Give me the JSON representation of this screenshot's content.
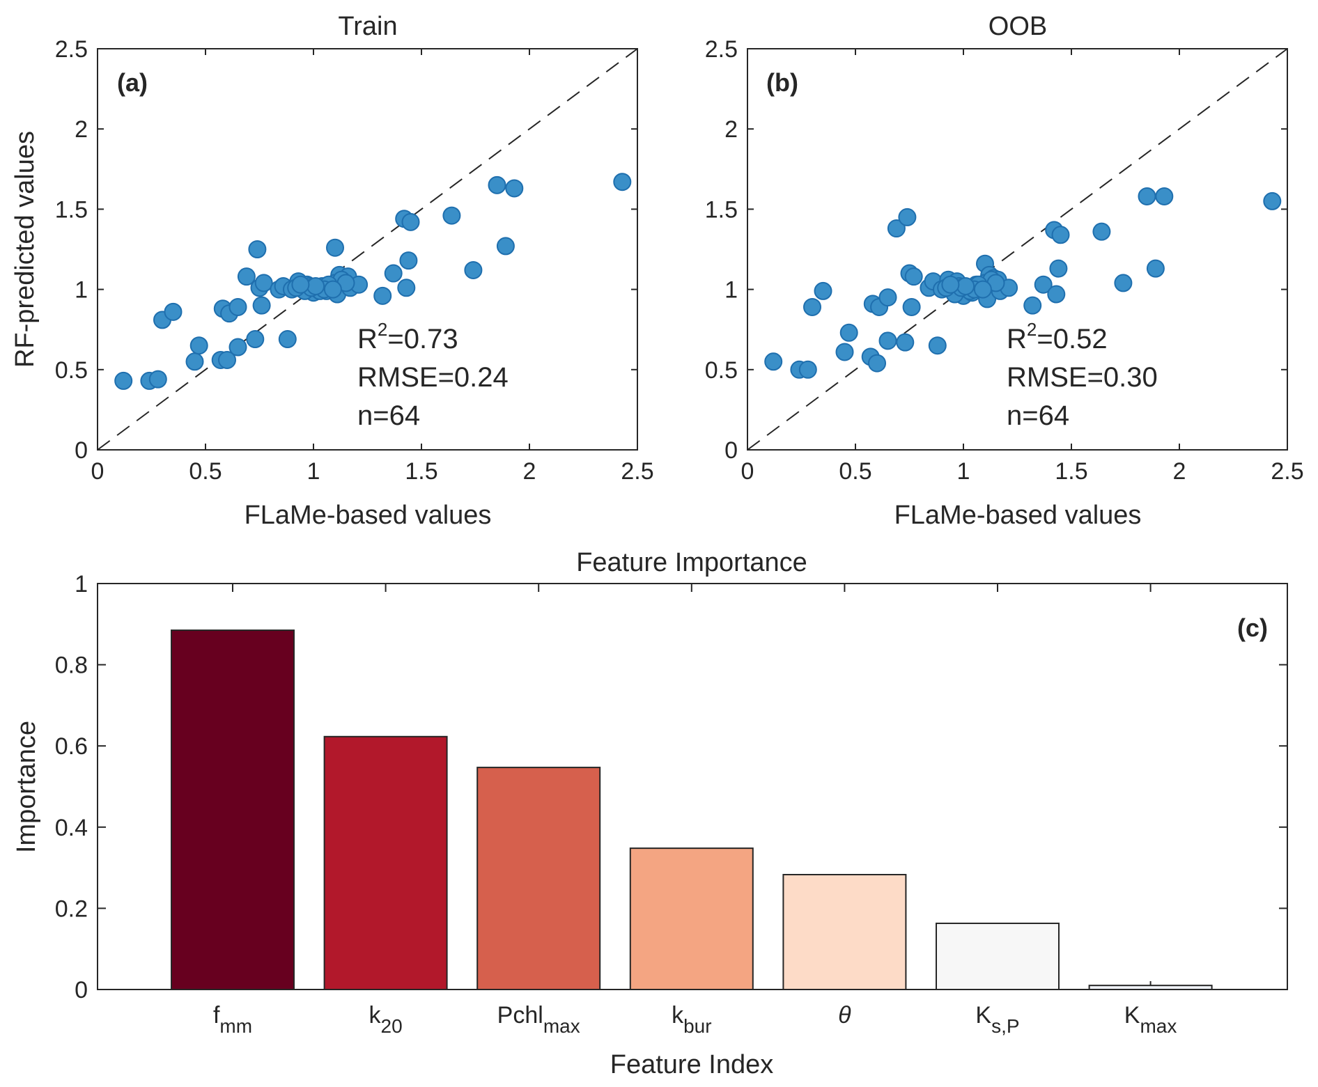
{
  "chart_data": [
    {
      "type": "scatter",
      "title": "Train",
      "panel_label": "(a)",
      "xlabel": "FLaMe-based values",
      "ylabel": "RF-predicted values",
      "xlim": [
        0,
        2.5
      ],
      "ylim": [
        0,
        2.5
      ],
      "xticks": [
        "0",
        "0.5",
        "1",
        "1.5",
        "2",
        "2.5"
      ],
      "yticks": [
        "0",
        "0.5",
        "1",
        "1.5",
        "2",
        "2.5"
      ],
      "reference_line": "y = x (dashed)",
      "marker_color": "#3a8fc8",
      "marker_edge": "#1f6fae",
      "stats": {
        "r2_prefix": "R",
        "r2_sup": "2",
        "r2_value": "=0.73",
        "rmse": "RMSE=0.24",
        "n": "n=64"
      },
      "points": [
        [
          0.12,
          0.43
        ],
        [
          0.24,
          0.43
        ],
        [
          0.28,
          0.44
        ],
        [
          0.3,
          0.81
        ],
        [
          0.35,
          0.86
        ],
        [
          0.45,
          0.55
        ],
        [
          0.47,
          0.65
        ],
        [
          0.57,
          0.56
        ],
        [
          0.58,
          0.88
        ],
        [
          0.6,
          0.56
        ],
        [
          0.61,
          0.85
        ],
        [
          0.65,
          0.89
        ],
        [
          0.65,
          0.64
        ],
        [
          0.69,
          1.08
        ],
        [
          0.73,
          0.69
        ],
        [
          0.74,
          1.25
        ],
        [
          0.75,
          1.01
        ],
        [
          0.76,
          0.9
        ],
        [
          0.77,
          1.04
        ],
        [
          0.84,
          1.0
        ],
        [
          0.86,
          1.02
        ],
        [
          0.88,
          0.69
        ],
        [
          0.9,
          1.0
        ],
        [
          0.93,
          1.05
        ],
        [
          0.95,
          1.0
        ],
        [
          0.97,
          1.03
        ],
        [
          0.99,
          1.0
        ],
        [
          1.0,
          0.98
        ],
        [
          1.02,
          1.0
        ],
        [
          1.04,
          1.02
        ],
        [
          1.06,
          0.99
        ],
        [
          1.08,
          1.01
        ],
        [
          1.1,
          1.26
        ],
        [
          1.11,
          0.97
        ],
        [
          1.12,
          1.09
        ],
        [
          1.14,
          1.05
        ],
        [
          1.16,
          1.08
        ],
        [
          1.17,
          1.01
        ],
        [
          1.21,
          1.03
        ],
        [
          1.32,
          0.96
        ],
        [
          1.37,
          1.1
        ],
        [
          1.42,
          1.44
        ],
        [
          1.43,
          1.01
        ],
        [
          1.44,
          1.18
        ],
        [
          1.45,
          1.42
        ],
        [
          1.64,
          1.46
        ],
        [
          1.74,
          1.12
        ],
        [
          1.85,
          1.65
        ],
        [
          1.89,
          1.27
        ],
        [
          1.93,
          1.63
        ],
        [
          2.43,
          1.67
        ],
        [
          0.98,
          1.02
        ],
        [
          1.03,
          0.99
        ],
        [
          1.1,
          1.04
        ],
        [
          1.13,
          1.06
        ],
        [
          0.96,
          0.99
        ],
        [
          1.07,
          1.03
        ],
        [
          0.92,
          1.01
        ],
        [
          1.15,
          1.04
        ],
        [
          0.99,
          1.01
        ],
        [
          1.05,
          1.0
        ],
        [
          1.01,
          1.02
        ],
        [
          1.09,
          1.0
        ],
        [
          0.94,
          1.03
        ]
      ]
    },
    {
      "type": "scatter",
      "title": "OOB",
      "panel_label": "(b)",
      "xlabel": "FLaMe-based values",
      "ylabel": "",
      "xlim": [
        0,
        2.5
      ],
      "ylim": [
        0,
        2.5
      ],
      "xticks": [
        "0",
        "0.5",
        "1",
        "1.5",
        "2",
        "2.5"
      ],
      "yticks": [
        "0",
        "0.5",
        "1",
        "1.5",
        "2",
        "2.5"
      ],
      "reference_line": "y = x (dashed)",
      "marker_color": "#3a8fc8",
      "marker_edge": "#1f6fae",
      "stats": {
        "r2_prefix": "R",
        "r2_sup": "2",
        "r2_value": "=0.52",
        "rmse": "RMSE=0.30",
        "n": "n=64"
      },
      "points": [
        [
          0.12,
          0.55
        ],
        [
          0.24,
          0.5
        ],
        [
          0.28,
          0.5
        ],
        [
          0.3,
          0.89
        ],
        [
          0.35,
          0.99
        ],
        [
          0.45,
          0.61
        ],
        [
          0.47,
          0.73
        ],
        [
          0.57,
          0.58
        ],
        [
          0.58,
          0.91
        ],
        [
          0.6,
          0.54
        ],
        [
          0.61,
          0.89
        ],
        [
          0.65,
          0.95
        ],
        [
          0.65,
          0.68
        ],
        [
          0.69,
          1.38
        ],
        [
          0.73,
          0.67
        ],
        [
          0.74,
          1.45
        ],
        [
          0.75,
          1.1
        ],
        [
          0.76,
          0.89
        ],
        [
          0.77,
          1.08
        ],
        [
          0.84,
          1.01
        ],
        [
          0.86,
          1.05
        ],
        [
          0.88,
          0.65
        ],
        [
          0.9,
          1.0
        ],
        [
          0.93,
          1.06
        ],
        [
          0.95,
          1.02
        ],
        [
          0.97,
          1.05
        ],
        [
          0.99,
          1.0
        ],
        [
          1.0,
          0.96
        ],
        [
          1.02,
          1.0
        ],
        [
          1.04,
          0.98
        ],
        [
          1.06,
          1.03
        ],
        [
          1.08,
          1.01
        ],
        [
          1.1,
          1.16
        ],
        [
          1.11,
          0.94
        ],
        [
          1.12,
          1.09
        ],
        [
          1.14,
          1.07
        ],
        [
          1.16,
          1.06
        ],
        [
          1.17,
          0.99
        ],
        [
          1.21,
          1.01
        ],
        [
          1.32,
          0.9
        ],
        [
          1.37,
          1.03
        ],
        [
          1.42,
          1.37
        ],
        [
          1.43,
          0.97
        ],
        [
          1.44,
          1.13
        ],
        [
          1.45,
          1.34
        ],
        [
          1.64,
          1.36
        ],
        [
          1.74,
          1.04
        ],
        [
          1.85,
          1.58
        ],
        [
          1.89,
          1.13
        ],
        [
          1.93,
          1.58
        ],
        [
          2.43,
          1.55
        ],
        [
          0.98,
          1.02
        ],
        [
          1.03,
          0.99
        ],
        [
          1.1,
          1.04
        ],
        [
          1.13,
          1.06
        ],
        [
          0.96,
          0.97
        ],
        [
          1.07,
          1.03
        ],
        [
          0.92,
          1.01
        ],
        [
          1.15,
          1.04
        ],
        [
          0.99,
          1.01
        ],
        [
          1.05,
          1.0
        ],
        [
          1.01,
          1.02
        ],
        [
          1.09,
          1.0
        ],
        [
          0.94,
          1.03
        ]
      ]
    },
    {
      "type": "bar",
      "title": "Feature Importance",
      "panel_label": "(c)",
      "xlabel": "Feature Index",
      "ylabel": "Importance",
      "ylim": [
        0,
        1
      ],
      "yticks": [
        "0",
        "0.2",
        "0.4",
        "0.6",
        "0.8",
        "1"
      ],
      "categories": [
        {
          "base": "f",
          "sub": "mm",
          "italic": false
        },
        {
          "base": "k",
          "sub": "20",
          "italic": false
        },
        {
          "base": "Pchl",
          "sub": "max",
          "italic": false
        },
        {
          "base": "k",
          "sub": "bur",
          "italic": false
        },
        {
          "base": "θ",
          "sub": "",
          "italic": true
        },
        {
          "base": "K",
          "sub": "s,P",
          "italic": false
        },
        {
          "base": "K",
          "sub": "max",
          "italic": false
        }
      ],
      "values": [
        0.885,
        0.623,
        0.547,
        0.348,
        0.283,
        0.163,
        0.01
      ],
      "colors": [
        "#67001f",
        "#b2182b",
        "#d6604d",
        "#f4a582",
        "#fddbc7",
        "#f7f7f7",
        "#f0f3f8"
      ]
    }
  ]
}
